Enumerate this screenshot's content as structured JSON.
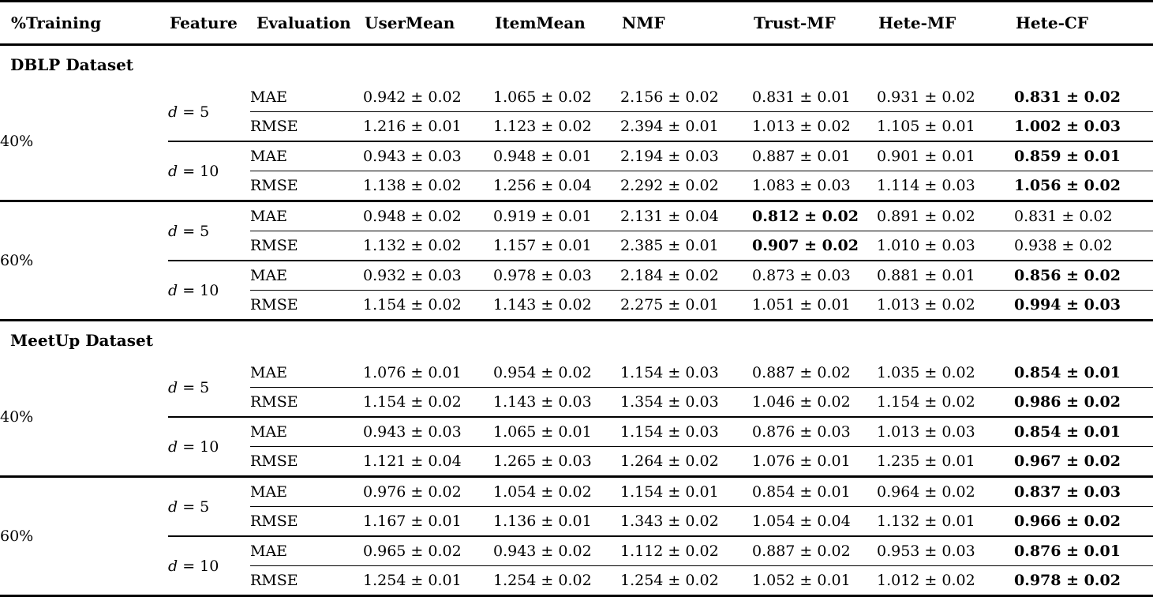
{
  "header": {
    "columns": [
      "%Training",
      "Feature",
      "Evaluation",
      "UserMean",
      "ItemMean",
      "NMF",
      "Trust-MF",
      "Hete-MF",
      "Hete-CF"
    ]
  },
  "sections": [
    {
      "label": "DBLP Dataset",
      "groups": [
        {
          "training": "40%",
          "features": [
            {
              "symbol": "d",
              "relation": "= 5",
              "rows": [
                {
                  "evaluation": "MAE",
                  "values": [
                    "0.942 ± 0.02",
                    "1.065 ± 0.02",
                    "2.156 ± 0.02",
                    "0.831 ± 0.01",
                    "0.931 ± 0.02",
                    "0.831 ± 0.02"
                  ],
                  "bold_index": 5
                },
                {
                  "evaluation": "RMSE",
                  "values": [
                    "1.216 ± 0.01",
                    "1.123 ± 0.02",
                    "2.394 ± 0.01",
                    "1.013 ± 0.02",
                    "1.105 ± 0.01",
                    "1.002 ± 0.03"
                  ],
                  "bold_index": 5
                }
              ]
            },
            {
              "symbol": "d",
              "relation": "= 10",
              "rows": [
                {
                  "evaluation": "MAE",
                  "values": [
                    "0.943 ± 0.03",
                    "0.948 ± 0.01",
                    "2.194 ± 0.03",
                    "0.887 ± 0.01",
                    "0.901 ± 0.01",
                    "0.859 ± 0.01"
                  ],
                  "bold_index": 5
                },
                {
                  "evaluation": "RMSE",
                  "values": [
                    "1.138 ± 0.02",
                    "1.256 ± 0.04",
                    "2.292 ± 0.02",
                    "1.083 ± 0.03",
                    "1.114 ± 0.03",
                    "1.056 ± 0.02"
                  ],
                  "bold_index": 5
                }
              ]
            }
          ]
        },
        {
          "training": "60%",
          "features": [
            {
              "symbol": "d",
              "relation": "= 5",
              "rows": [
                {
                  "evaluation": "MAE",
                  "values": [
                    "0.948 ± 0.02",
                    "0.919 ± 0.01",
                    "2.131 ± 0.04",
                    "0.812 ± 0.02",
                    "0.891 ± 0.02",
                    "0.831 ± 0.02"
                  ],
                  "bold_index": 3
                },
                {
                  "evaluation": "RMSE",
                  "values": [
                    "1.132 ± 0.02",
                    "1.157 ± 0.01",
                    "2.385 ± 0.01",
                    "0.907 ± 0.02",
                    "1.010 ± 0.03",
                    "0.938 ± 0.02"
                  ],
                  "bold_index": 3
                }
              ]
            },
            {
              "symbol": "d",
              "relation": "= 10",
              "rows": [
                {
                  "evaluation": "MAE",
                  "values": [
                    "0.932 ± 0.03",
                    "0.978 ± 0.03",
                    "2.184 ± 0.02",
                    "0.873 ± 0.03",
                    "0.881 ± 0.01",
                    "0.856 ± 0.02"
                  ],
                  "bold_index": 5
                },
                {
                  "evaluation": "RMSE",
                  "values": [
                    "1.154 ± 0.02",
                    "1.143 ± 0.02",
                    "2.275 ± 0.01",
                    "1.051 ± 0.01",
                    "1.013 ± 0.02",
                    "0.994 ± 0.03"
                  ],
                  "bold_index": 5
                }
              ]
            }
          ]
        }
      ]
    },
    {
      "label": "MeetUp Dataset",
      "groups": [
        {
          "training": "40%",
          "features": [
            {
              "symbol": "d",
              "relation": "= 5",
              "rows": [
                {
                  "evaluation": "MAE",
                  "values": [
                    "1.076 ± 0.01",
                    "0.954 ± 0.02",
                    "1.154 ± 0.03",
                    "0.887 ± 0.02",
                    "1.035 ± 0.02",
                    "0.854 ± 0.01"
                  ],
                  "bold_index": 5
                },
                {
                  "evaluation": "RMSE",
                  "values": [
                    "1.154 ± 0.02",
                    "1.143 ± 0.03",
                    "1.354 ± 0.03",
                    "1.046 ± 0.02",
                    "1.154 ± 0.02",
                    "0.986 ± 0.02"
                  ],
                  "bold_index": 5
                }
              ]
            },
            {
              "symbol": "d",
              "relation": "= 10",
              "rows": [
                {
                  "evaluation": "MAE",
                  "values": [
                    "0.943 ± 0.03",
                    "1.065 ± 0.01",
                    "1.154 ± 0.03",
                    "0.876 ± 0.03",
                    "1.013 ± 0.03",
                    "0.854 ± 0.01"
                  ],
                  "bold_index": 5
                },
                {
                  "evaluation": "RMSE",
                  "values": [
                    "1.121 ± 0.04",
                    "1.265 ± 0.03",
                    "1.264 ± 0.02",
                    "1.076 ± 0.01",
                    "1.235 ± 0.01",
                    "0.967 ± 0.02"
                  ],
                  "bold_index": 5
                }
              ]
            }
          ]
        },
        {
          "training": "60%",
          "features": [
            {
              "symbol": "d",
              "relation": "= 5",
              "rows": [
                {
                  "evaluation": "MAE",
                  "values": [
                    "0.976 ± 0.02",
                    "1.054 ± 0.02",
                    "1.154 ± 0.01",
                    "0.854 ± 0.01",
                    "0.964 ± 0.02",
                    "0.837 ± 0.03"
                  ],
                  "bold_index": 5
                },
                {
                  "evaluation": "RMSE",
                  "values": [
                    "1.167 ± 0.01",
                    "1.136 ± 0.01",
                    "1.343 ± 0.02",
                    "1.054 ± 0.04",
                    "1.132 ± 0.01",
                    "0.966 ± 0.02"
                  ],
                  "bold_index": 5
                }
              ]
            },
            {
              "symbol": "d",
              "relation": "= 10",
              "rows": [
                {
                  "evaluation": "MAE",
                  "values": [
                    "0.965 ± 0.02",
                    "0.943 ± 0.02",
                    "1.112 ± 0.02",
                    "0.887 ± 0.02",
                    "0.953 ± 0.03",
                    "0.876 ± 0.01"
                  ],
                  "bold_index": 5
                },
                {
                  "evaluation": "RMSE",
                  "values": [
                    "1.254 ± 0.01",
                    "1.254 ± 0.02",
                    "1.254 ± 0.02",
                    "1.052 ± 0.01",
                    "1.012 ± 0.02",
                    "0.978 ± 0.02"
                  ],
                  "bold_index": 5
                }
              ]
            }
          ]
        }
      ]
    }
  ]
}
